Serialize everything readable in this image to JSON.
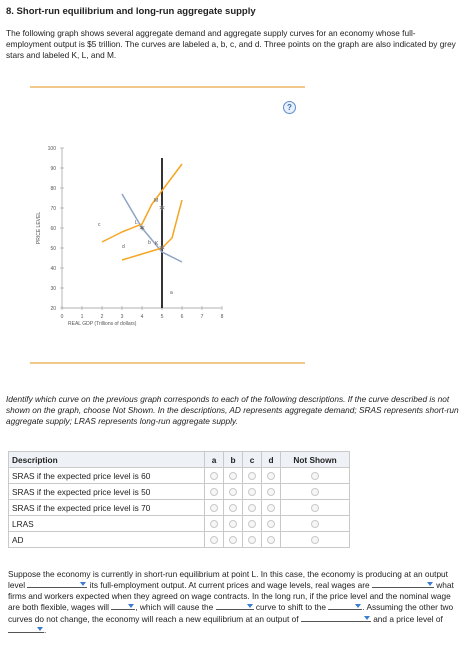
{
  "header": {
    "title": "8. Short-run equilibrium and long-run aggregate supply",
    "intro": "The following graph shows several aggregate demand and aggregate supply curves for an economy whose full-employment output is $5 trillion. The curves are labeled a, b, c, and d. Three points on the graph are also indicated by grey stars and labeled K, L, and M."
  },
  "help_label": "?",
  "graph": {
    "ylabel": "PRICE LEVEL",
    "xlabel": "REAL GDP (Trillions of dollars)",
    "y_ticks": [
      "100",
      "90",
      "80",
      "70",
      "60",
      "50",
      "40",
      "30",
      "20"
    ],
    "x_ticks": [
      "0",
      "1",
      "2",
      "3",
      "4",
      "5",
      "6",
      "7",
      "8"
    ],
    "curve_labels": {
      "a": "a",
      "b": "b",
      "c": "c",
      "d": "d"
    },
    "point_labels": {
      "K": "K",
      "L": "L",
      "M": "M"
    },
    "colors": {
      "supply": "#f5a623",
      "demand": "#8fa3c4",
      "lras": "#000000",
      "star": "#666666"
    }
  },
  "chart_data": {
    "type": "line",
    "xlabel": "REAL GDP (Trillions of dollars)",
    "ylabel": "PRICE LEVEL",
    "xlim": [
      0,
      8
    ],
    "ylim": [
      20,
      100
    ],
    "series": [
      {
        "name": "a",
        "points": [
          [
            5,
            20
          ],
          [
            5,
            95
          ]
        ]
      },
      {
        "name": "b",
        "points": [
          [
            3,
            77
          ],
          [
            4,
            60
          ],
          [
            5,
            48
          ],
          [
            6,
            43
          ]
        ]
      },
      {
        "name": "c",
        "points": [
          [
            2,
            53
          ],
          [
            3,
            58
          ],
          [
            4,
            62
          ],
          [
            4.5,
            72
          ],
          [
            6,
            92
          ]
        ]
      },
      {
        "name": "d",
        "points": [
          [
            3,
            44
          ],
          [
            4,
            47
          ],
          [
            5,
            50
          ],
          [
            5.5,
            55
          ],
          [
            6,
            74
          ]
        ]
      }
    ],
    "points": [
      {
        "label": "K",
        "x": 5,
        "y": 50
      },
      {
        "label": "L",
        "x": 4,
        "y": 60
      },
      {
        "label": "M",
        "x": 5,
        "y": 70
      }
    ],
    "grid": false
  },
  "instructions": "Identify which curve on the previous graph corresponds to each of the following descriptions. If the curve described is not shown on the graph, choose Not Shown. In the descriptions, AD represents aggregate demand; SRAS represents short-run aggregate supply; LRAS represents long-run aggregate supply.",
  "table": {
    "headers": [
      "Description",
      "a",
      "b",
      "c",
      "d",
      "Not Shown"
    ],
    "rows": [
      "SRAS if the expected price level is 60",
      "SRAS if the expected price level is 50",
      "SRAS if the expected price level is 70",
      "LRAS",
      "AD"
    ]
  },
  "paragraph": {
    "p1": "Suppose the economy is currently in short-run equilibrium at point L. In this case, the economy is producing at an output level",
    "p2": "its full-employment output. At current prices and wage levels, real wages are",
    "p3": "what firms and workers expected when they agreed on wage contracts. In the long run, if the price level and the nominal wage are both flexible, wages will",
    "p4": ", which will cause the",
    "p5": "curve to shift to the",
    "p6": ". Assuming the other two curves do not change, the economy will reach a new equilibrium at an output of",
    "p7": "and a price level of",
    "p8": "."
  }
}
